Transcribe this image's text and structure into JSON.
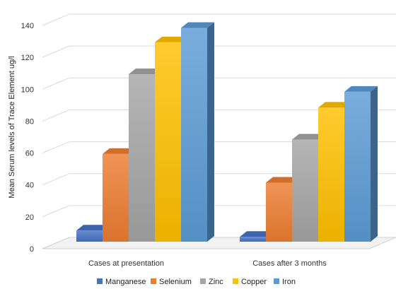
{
  "chart_data": {
    "type": "bar",
    "title": "",
    "xlabel": "",
    "ylabel": "Mean Serum levels of Trace Element ug/l",
    "categories": [
      "Cases at presentation",
      "Cases after 3 months"
    ],
    "series": [
      {
        "name": "Manganese",
        "values": [
          7,
          3
        ],
        "color": "#4472C4"
      },
      {
        "name": "Selenium",
        "values": [
          55,
          37
        ],
        "color": "#ED7D31"
      },
      {
        "name": "Zinc",
        "values": [
          105,
          64
        ],
        "color": "#A5A5A5"
      },
      {
        "name": "Copper",
        "values": [
          125,
          84
        ],
        "color": "#FFC000"
      },
      {
        "name": "Iron",
        "values": [
          134,
          94
        ],
        "color": "#5B9BD5"
      }
    ],
    "ylim": [
      0,
      140
    ],
    "yticks": [
      0,
      20,
      40,
      60,
      80,
      100,
      120,
      140
    ],
    "grid": true,
    "legend": "bottom",
    "style": "3d-clustered-column"
  }
}
